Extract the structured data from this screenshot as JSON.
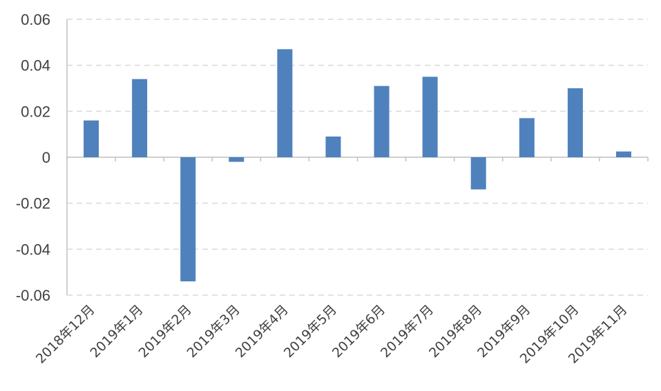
{
  "chart_data": {
    "type": "bar",
    "title": "",
    "xlabel": "",
    "ylabel": "",
    "categories": [
      "2018年12月",
      "2019年1月",
      "2019年2月",
      "2019年3月",
      "2019年4月",
      "2019年5月",
      "2019年6月",
      "2019年7月",
      "2019年8月",
      "2019年9月",
      "2019年10月",
      "2019年11月"
    ],
    "values": [
      0.016,
      0.034,
      -0.054,
      -0.002,
      0.047,
      0.009,
      0.031,
      0.035,
      -0.014,
      0.017,
      0.03,
      0.0025
    ],
    "ylim": [
      -0.06,
      0.06
    ],
    "yticks": [
      "0.06",
      "0.04",
      "0.02",
      "0",
      "-0.02",
      "-0.04",
      "-0.06"
    ],
    "ytick_values": [
      0.06,
      0.04,
      0.02,
      0,
      -0.02,
      -0.04,
      -0.06
    ],
    "grid": true,
    "legend": "none",
    "bar_color": "#4f81bd",
    "grid_color": "#d9d9d9",
    "axis_color": "#bfbfbf"
  }
}
